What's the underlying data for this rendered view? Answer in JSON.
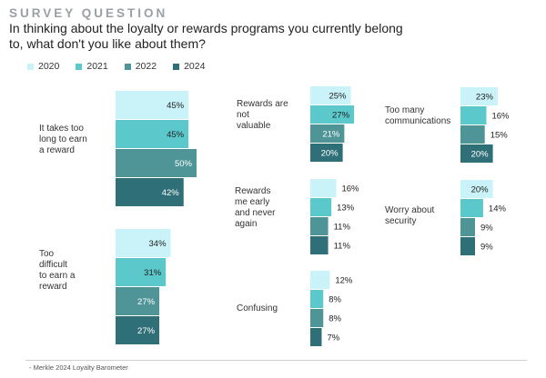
{
  "header": {
    "eyebrow": "SURVEY QUESTION",
    "question": "In thinking about the loyalty or rewards programs you currently belong to, what don't you like about them?"
  },
  "legend": [
    {
      "label": "2020",
      "color": "#c9f3f8"
    },
    {
      "label": "2021",
      "color": "#5bc8cc"
    },
    {
      "label": "2022",
      "color": "#4f9496"
    },
    {
      "label": "2024",
      "color": "#2f6f78"
    }
  ],
  "footer": "- Merkle 2024 Loyalty Barometer",
  "chart_data": {
    "type": "bar",
    "orientation": "horizontal",
    "series_names": [
      "2020",
      "2021",
      "2022",
      "2024"
    ],
    "colors": [
      "#c9f3f8",
      "#5bc8cc",
      "#4f9496",
      "#2f6f78"
    ],
    "groups": [
      {
        "category": "It takes too long to earn a reward",
        "values": [
          45,
          45,
          50,
          42
        ],
        "labels": [
          "45%",
          "45%",
          "50%",
          "42%"
        ]
      },
      {
        "category": "Too difficult to earn a reward",
        "values": [
          34,
          31,
          27,
          27
        ],
        "labels": [
          "34%",
          "31%",
          "27%",
          "27%"
        ]
      },
      {
        "category": "Rewards are not valuable",
        "values": [
          25,
          27,
          21,
          20
        ],
        "labels": [
          "25%",
          "27%",
          "21%",
          "20%"
        ]
      },
      {
        "category": "Rewards me early and never again",
        "values": [
          16,
          13,
          11,
          11
        ],
        "labels": [
          "16%",
          "13%",
          "11%",
          "11%"
        ]
      },
      {
        "category": "Confusing",
        "values": [
          12,
          8,
          8,
          7
        ],
        "labels": [
          "12%",
          "8%",
          "8%",
          "7%"
        ]
      },
      {
        "category": "Too many communications",
        "values": [
          23,
          16,
          15,
          20
        ],
        "labels": [
          "23%",
          "16%",
          "15%",
          "20%"
        ]
      },
      {
        "category": "Worry about security",
        "values": [
          20,
          14,
          9,
          9
        ],
        "labels": [
          "20%",
          "14%",
          "9%",
          "9%"
        ]
      }
    ]
  }
}
